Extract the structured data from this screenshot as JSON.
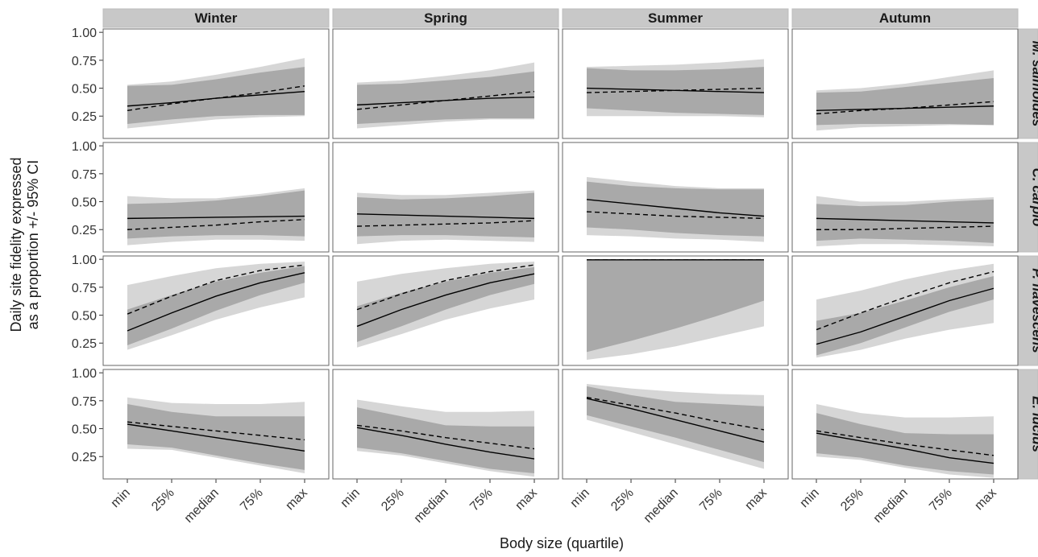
{
  "chart_data": {
    "type": "line",
    "ylabel_line1": "Daily site fidelity expressed",
    "ylabel_line2": "as a proportion  +/- 95% CI",
    "xlabel": "Body size (quartile)",
    "seasons": [
      "Winter",
      "Spring",
      "Summer",
      "Autumn"
    ],
    "species": [
      "M. salmoides",
      "C. carpio",
      "P. flavescens",
      "E. lucius"
    ],
    "x_tick_labels": [
      "min",
      "25%",
      "median",
      "75%",
      "max"
    ],
    "y_ticks": [
      "0.25",
      "0.50",
      "0.75",
      "1.00"
    ],
    "ylim": [
      0.05,
      1.03
    ],
    "colors": {
      "strip_bg": "#c8c8c8",
      "outer_band": "#d6d6d6",
      "inner_band": "#a9a9a9",
      "line": "#000000",
      "panel_border": "#666666"
    },
    "panels": [
      {
        "species": "M. salmoides",
        "season": "Winter",
        "solid": [
          0.34,
          0.37,
          0.41,
          0.44,
          0.47
        ],
        "dashed": [
          0.3,
          0.36,
          0.41,
          0.46,
          0.52
        ],
        "inner": [
          [
            0.18,
            0.52
          ],
          [
            0.22,
            0.53
          ],
          [
            0.25,
            0.58
          ],
          [
            0.26,
            0.64
          ],
          [
            0.26,
            0.69
          ]
        ],
        "outer": [
          [
            0.14,
            0.53
          ],
          [
            0.18,
            0.56
          ],
          [
            0.22,
            0.62
          ],
          [
            0.24,
            0.69
          ],
          [
            0.25,
            0.77
          ]
        ]
      },
      {
        "species": "M. salmoides",
        "season": "Spring",
        "solid": [
          0.35,
          0.37,
          0.39,
          0.41,
          0.42
        ],
        "dashed": [
          0.31,
          0.35,
          0.39,
          0.43,
          0.47
        ],
        "inner": [
          [
            0.18,
            0.53
          ],
          [
            0.2,
            0.54
          ],
          [
            0.22,
            0.57
          ],
          [
            0.23,
            0.6
          ],
          [
            0.23,
            0.65
          ]
        ],
        "outer": [
          [
            0.14,
            0.55
          ],
          [
            0.17,
            0.57
          ],
          [
            0.2,
            0.61
          ],
          [
            0.22,
            0.66
          ],
          [
            0.22,
            0.73
          ]
        ]
      },
      {
        "species": "M. salmoides",
        "season": "Summer",
        "solid": [
          0.5,
          0.49,
          0.48,
          0.47,
          0.46
        ],
        "dashed": [
          0.46,
          0.47,
          0.48,
          0.49,
          0.5
        ],
        "inner": [
          [
            0.32,
            0.68
          ],
          [
            0.3,
            0.66
          ],
          [
            0.28,
            0.66
          ],
          [
            0.27,
            0.67
          ],
          [
            0.26,
            0.69
          ]
        ],
        "outer": [
          [
            0.25,
            0.69
          ],
          [
            0.25,
            0.7
          ],
          [
            0.25,
            0.71
          ],
          [
            0.25,
            0.73
          ],
          [
            0.24,
            0.76
          ]
        ]
      },
      {
        "species": "M. salmoides",
        "season": "Autumn",
        "solid": [
          0.3,
          0.31,
          0.32,
          0.33,
          0.34
        ],
        "dashed": [
          0.27,
          0.3,
          0.32,
          0.35,
          0.38
        ],
        "inner": [
          [
            0.17,
            0.46
          ],
          [
            0.18,
            0.47
          ],
          [
            0.18,
            0.51
          ],
          [
            0.18,
            0.55
          ],
          [
            0.17,
            0.59
          ]
        ],
        "outer": [
          [
            0.12,
            0.48
          ],
          [
            0.15,
            0.5
          ],
          [
            0.16,
            0.54
          ],
          [
            0.17,
            0.6
          ],
          [
            0.17,
            0.66
          ]
        ]
      },
      {
        "species": "C. carpio",
        "season": "Winter",
        "solid": [
          0.35,
          0.355,
          0.36,
          0.365,
          0.37
        ],
        "dashed": [
          0.25,
          0.27,
          0.29,
          0.32,
          0.34
        ],
        "inner": [
          [
            0.17,
            0.48
          ],
          [
            0.19,
            0.49
          ],
          [
            0.2,
            0.51
          ],
          [
            0.2,
            0.55
          ],
          [
            0.19,
            0.6
          ]
        ],
        "outer": [
          [
            0.11,
            0.55
          ],
          [
            0.14,
            0.53
          ],
          [
            0.16,
            0.53
          ],
          [
            0.16,
            0.57
          ],
          [
            0.15,
            0.62
          ]
        ]
      },
      {
        "species": "C. carpio",
        "season": "Spring",
        "solid": [
          0.39,
          0.38,
          0.37,
          0.36,
          0.35
        ],
        "dashed": [
          0.28,
          0.29,
          0.3,
          0.31,
          0.33
        ],
        "inner": [
          [
            0.19,
            0.54
          ],
          [
            0.2,
            0.52
          ],
          [
            0.2,
            0.53
          ],
          [
            0.19,
            0.55
          ],
          [
            0.18,
            0.58
          ]
        ],
        "outer": [
          [
            0.12,
            0.58
          ],
          [
            0.15,
            0.56
          ],
          [
            0.16,
            0.56
          ],
          [
            0.15,
            0.58
          ],
          [
            0.14,
            0.6
          ]
        ]
      },
      {
        "species": "C. carpio",
        "season": "Summer",
        "solid": [
          0.52,
          0.48,
          0.44,
          0.4,
          0.37
        ],
        "dashed": [
          0.41,
          0.39,
          0.37,
          0.36,
          0.35
        ],
        "inner": [
          [
            0.27,
            0.68
          ],
          [
            0.25,
            0.64
          ],
          [
            0.22,
            0.62
          ],
          [
            0.2,
            0.61
          ],
          [
            0.19,
            0.61
          ]
        ],
        "outer": [
          [
            0.2,
            0.72
          ],
          [
            0.19,
            0.68
          ],
          [
            0.17,
            0.64
          ],
          [
            0.16,
            0.62
          ],
          [
            0.14,
            0.62
          ]
        ]
      },
      {
        "species": "C. carpio",
        "season": "Autumn",
        "solid": [
          0.35,
          0.34,
          0.33,
          0.32,
          0.31
        ],
        "dashed": [
          0.25,
          0.25,
          0.26,
          0.27,
          0.28
        ],
        "inner": [
          [
            0.15,
            0.48
          ],
          [
            0.17,
            0.46
          ],
          [
            0.16,
            0.47
          ],
          [
            0.15,
            0.5
          ],
          [
            0.13,
            0.52
          ]
        ],
        "outer": [
          [
            0.1,
            0.55
          ],
          [
            0.12,
            0.5
          ],
          [
            0.12,
            0.5
          ],
          [
            0.11,
            0.52
          ],
          [
            0.1,
            0.54
          ]
        ]
      },
      {
        "species": "P. flavescens",
        "season": "Winter",
        "solid": [
          0.36,
          0.52,
          0.67,
          0.79,
          0.88
        ],
        "dashed": [
          0.51,
          0.67,
          0.81,
          0.9,
          0.95
        ],
        "inner": [
          [
            0.23,
            0.55
          ],
          [
            0.38,
            0.68
          ],
          [
            0.54,
            0.8
          ],
          [
            0.68,
            0.88
          ],
          [
            0.79,
            0.94
          ]
        ],
        "outer": [
          [
            0.19,
            0.77
          ],
          [
            0.32,
            0.85
          ],
          [
            0.46,
            0.92
          ],
          [
            0.57,
            0.96
          ],
          [
            0.66,
            0.98
          ]
        ]
      },
      {
        "species": "P. flavescens",
        "season": "Spring",
        "solid": [
          0.4,
          0.55,
          0.68,
          0.79,
          0.87
        ],
        "dashed": [
          0.55,
          0.69,
          0.81,
          0.89,
          0.95
        ],
        "inner": [
          [
            0.26,
            0.58
          ],
          [
            0.4,
            0.7
          ],
          [
            0.55,
            0.8
          ],
          [
            0.68,
            0.88
          ],
          [
            0.78,
            0.93
          ]
        ],
        "outer": [
          [
            0.21,
            0.8
          ],
          [
            0.33,
            0.87
          ],
          [
            0.46,
            0.92
          ],
          [
            0.56,
            0.96
          ],
          [
            0.64,
            0.98
          ]
        ]
      },
      {
        "species": "P. flavescens",
        "season": "Summer",
        "solid": [
          0.995,
          0.995,
          0.995,
          0.995,
          0.995
        ],
        "dashed": [
          0.995,
          0.995,
          0.995,
          0.995,
          0.995
        ],
        "inner": [
          [
            0.17,
            1.0
          ],
          [
            0.27,
            1.0
          ],
          [
            0.38,
            1.0
          ],
          [
            0.5,
            1.0
          ],
          [
            0.63,
            1.0
          ]
        ],
        "outer": [
          [
            0.1,
            1.0
          ],
          [
            0.15,
            1.0
          ],
          [
            0.22,
            1.0
          ],
          [
            0.31,
            1.0
          ],
          [
            0.4,
            1.0
          ]
        ]
      },
      {
        "species": "P. flavescens",
        "season": "Autumn",
        "solid": [
          0.24,
          0.35,
          0.49,
          0.63,
          0.74
        ],
        "dashed": [
          0.37,
          0.52,
          0.66,
          0.79,
          0.89
        ],
        "inner": [
          [
            0.14,
            0.45
          ],
          [
            0.25,
            0.52
          ],
          [
            0.39,
            0.63
          ],
          [
            0.53,
            0.75
          ],
          [
            0.64,
            0.85
          ]
        ],
        "outer": [
          [
            0.12,
            0.64
          ],
          [
            0.19,
            0.72
          ],
          [
            0.29,
            0.82
          ],
          [
            0.37,
            0.9
          ],
          [
            0.43,
            0.96
          ]
        ]
      },
      {
        "species": "E. lucius",
        "season": "Winter",
        "solid": [
          0.54,
          0.48,
          0.42,
          0.36,
          0.3
        ],
        "dashed": [
          0.56,
          0.52,
          0.48,
          0.44,
          0.4
        ],
        "inner": [
          [
            0.36,
            0.72
          ],
          [
            0.33,
            0.65
          ],
          [
            0.26,
            0.61
          ],
          [
            0.19,
            0.61
          ],
          [
            0.13,
            0.61
          ]
        ],
        "outer": [
          [
            0.32,
            0.78
          ],
          [
            0.31,
            0.73
          ],
          [
            0.24,
            0.72
          ],
          [
            0.17,
            0.72
          ],
          [
            0.1,
            0.74
          ]
        ]
      },
      {
        "species": "E. lucius",
        "season": "Spring",
        "solid": [
          0.51,
          0.44,
          0.36,
          0.29,
          0.23
        ],
        "dashed": [
          0.53,
          0.48,
          0.42,
          0.37,
          0.32
        ],
        "inner": [
          [
            0.33,
            0.69
          ],
          [
            0.28,
            0.61
          ],
          [
            0.21,
            0.53
          ],
          [
            0.14,
            0.52
          ],
          [
            0.1,
            0.52
          ]
        ],
        "outer": [
          [
            0.3,
            0.76
          ],
          [
            0.26,
            0.7
          ],
          [
            0.19,
            0.65
          ],
          [
            0.12,
            0.65
          ],
          [
            0.07,
            0.66
          ]
        ]
      },
      {
        "species": "E. lucius",
        "season": "Summer",
        "solid": [
          0.77,
          0.68,
          0.58,
          0.48,
          0.38
        ],
        "dashed": [
          0.78,
          0.71,
          0.64,
          0.56,
          0.49
        ],
        "inner": [
          [
            0.62,
            0.88
          ],
          [
            0.52,
            0.8
          ],
          [
            0.42,
            0.74
          ],
          [
            0.31,
            0.72
          ],
          [
            0.2,
            0.7
          ]
        ],
        "outer": [
          [
            0.58,
            0.9
          ],
          [
            0.47,
            0.86
          ],
          [
            0.36,
            0.83
          ],
          [
            0.25,
            0.81
          ],
          [
            0.14,
            0.8
          ]
        ]
      },
      {
        "species": "E. lucius",
        "season": "Autumn",
        "solid": [
          0.46,
          0.39,
          0.32,
          0.24,
          0.19
        ],
        "dashed": [
          0.48,
          0.42,
          0.36,
          0.31,
          0.26
        ],
        "inner": [
          [
            0.28,
            0.64
          ],
          [
            0.24,
            0.54
          ],
          [
            0.17,
            0.46
          ],
          [
            0.12,
            0.45
          ],
          [
            0.09,
            0.45
          ]
        ],
        "outer": [
          [
            0.25,
            0.72
          ],
          [
            0.22,
            0.64
          ],
          [
            0.15,
            0.6
          ],
          [
            0.09,
            0.6
          ],
          [
            0.06,
            0.61
          ]
        ]
      }
    ]
  }
}
